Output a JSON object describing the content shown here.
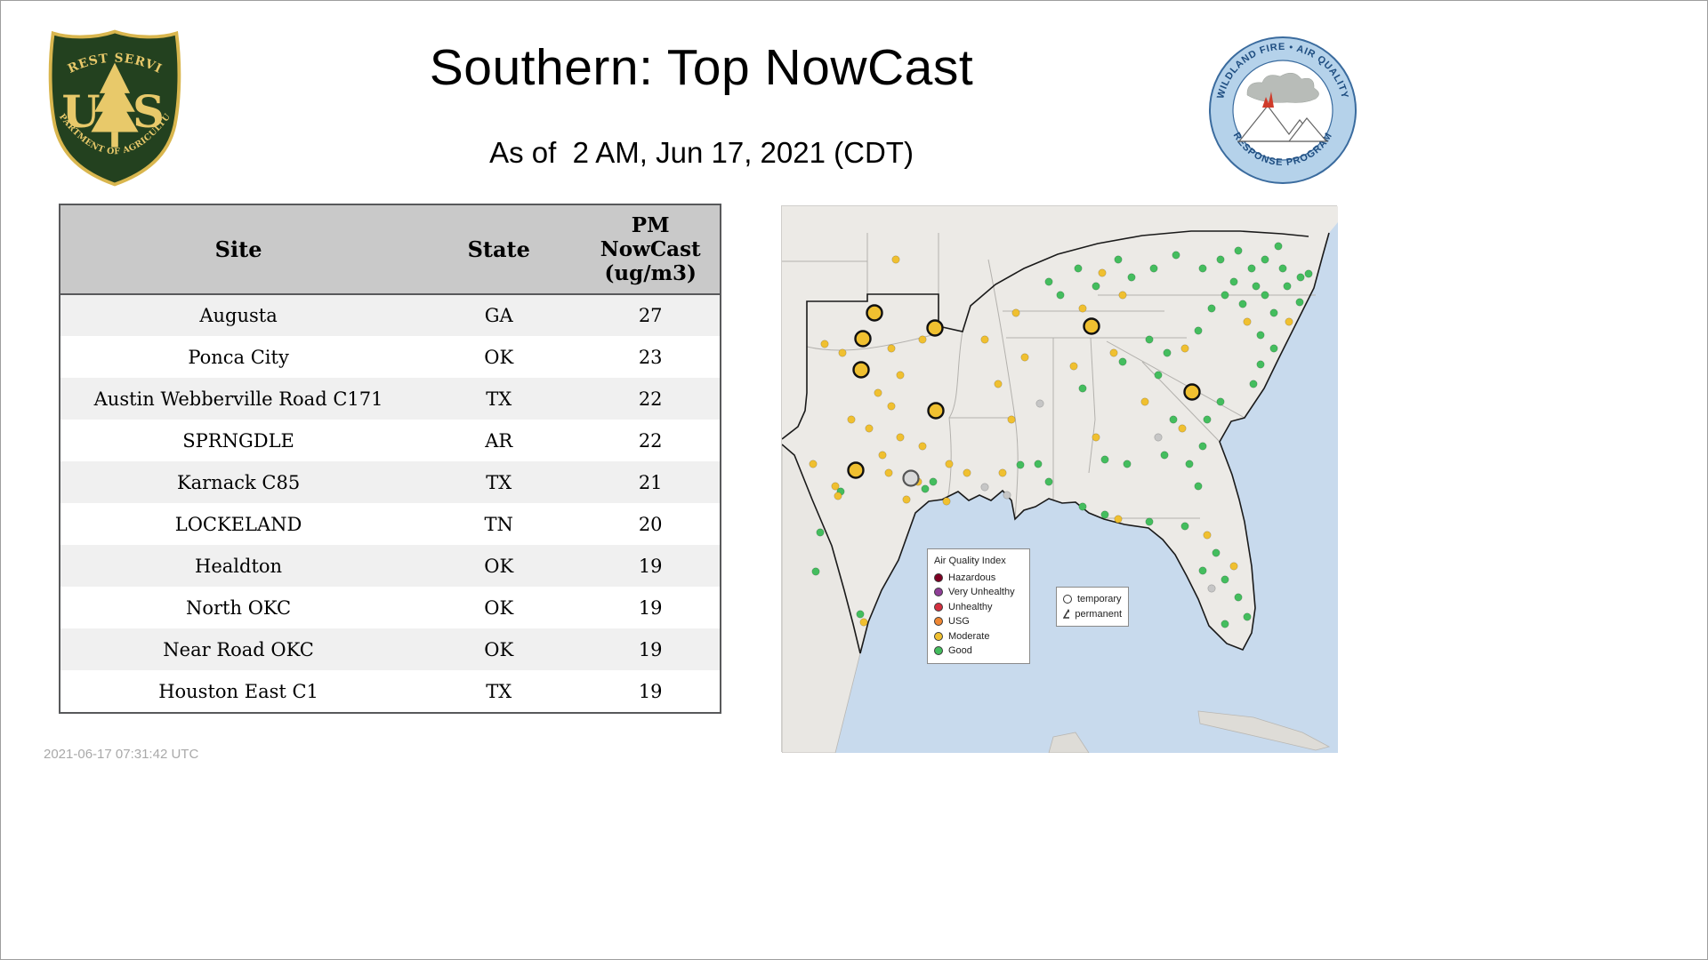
{
  "header": {
    "title": "Southern: Top NowCast",
    "as_of": "As of  2 AM, Jun 17, 2021 (CDT)"
  },
  "logos": {
    "usfs": {
      "arc_top": "FOREST SERVICE",
      "letter_u": "U",
      "letter_s": "S",
      "arc_bottom": "DEPARTMENT OF AGRICULTURE"
    },
    "wfaqrp": {
      "arc_top": "WILDLAND FIRE • AIR QUALITY",
      "arc_bottom": "RESPONSE PROGRAM"
    }
  },
  "table": {
    "site_header": "Site",
    "state_header": "State",
    "pm_header_lines": [
      "PM",
      "NowCast",
      "(ug/m3)"
    ],
    "rows": [
      {
        "site": "Augusta",
        "state": "GA",
        "value": "27"
      },
      {
        "site": "Ponca City",
        "state": "OK",
        "value": "23"
      },
      {
        "site": "Austin Webberville Road C171",
        "state": "TX",
        "value": "22"
      },
      {
        "site": "SPRNGDLE",
        "state": "AR",
        "value": "22"
      },
      {
        "site": "Karnack C85",
        "state": "TX",
        "value": "21"
      },
      {
        "site": "LOCKELAND",
        "state": "TN",
        "value": "20"
      },
      {
        "site": "Healdton",
        "state": "OK",
        "value": "19"
      },
      {
        "site": "North OKC",
        "state": "OK",
        "value": "19"
      },
      {
        "site": "Near Road OKC",
        "state": "OK",
        "value": "19"
      },
      {
        "site": "Houston East C1",
        "state": "TX",
        "value": "19"
      }
    ]
  },
  "map": {
    "legend": {
      "title": "Air Quality Index",
      "items": [
        {
          "label": "Hazardous",
          "color": "#7e0023"
        },
        {
          "label": "Very Unhealthy",
          "color": "#8f3f97"
        },
        {
          "label": "Unhealthy",
          "color": "#d god32f3f"
        },
        {
          "label": "USG",
          "color": "#ef8733"
        },
        {
          "label": "Moderate",
          "color": "#f0c030"
        },
        {
          "label": "Good",
          "color": "#44bd5e"
        }
      ]
    },
    "symbols": {
      "temporary": "temporary",
      "permanent": "permanent"
    },
    "colors": {
      "y": "#f0c030",
      "g": "#44bd5e",
      "n": "#c6c6c6",
      "big_gray": "#d9d9d9"
    },
    "markers": {
      "big_yellow": [
        [
          104,
          120
        ],
        [
          91,
          149
        ],
        [
          89,
          184
        ],
        [
          172,
          137
        ],
        [
          173,
          230
        ],
        [
          348,
          135
        ],
        [
          461,
          209
        ],
        [
          83,
          297
        ]
      ],
      "big_gray": [
        [
          145,
          306
        ]
      ],
      "dots": [
        [
          48,
          155,
          "y"
        ],
        [
          68,
          165,
          "y"
        ],
        [
          123,
          160,
          "y"
        ],
        [
          158,
          150,
          "y"
        ],
        [
          133,
          190,
          "y"
        ],
        [
          108,
          210,
          "y"
        ],
        [
          123,
          225,
          "y"
        ],
        [
          78,
          240,
          "y"
        ],
        [
          98,
          250,
          "y"
        ],
        [
          133,
          260,
          "y"
        ],
        [
          158,
          270,
          "y"
        ],
        [
          113,
          280,
          "y"
        ],
        [
          60,
          315,
          "y"
        ],
        [
          66,
          321,
          "g"
        ],
        [
          63,
          326,
          "y"
        ],
        [
          35,
          290,
          "y"
        ],
        [
          120,
          300,
          "y"
        ],
        [
          140,
          330,
          "y"
        ],
        [
          170,
          310,
          "g"
        ],
        [
          185,
          332,
          "y"
        ],
        [
          128,
          60,
          "y"
        ],
        [
          43,
          367,
          "g"
        ],
        [
          38,
          411,
          "g"
        ],
        [
          88,
          459,
          "g"
        ],
        [
          92,
          468,
          "y"
        ],
        [
          153,
          310,
          "y"
        ],
        [
          161,
          318,
          "g"
        ],
        [
          188,
          290,
          "y"
        ],
        [
          208,
          300,
          "y"
        ],
        [
          228,
          316,
          "n"
        ],
        [
          248,
          300,
          "y"
        ],
        [
          253,
          325,
          "n"
        ],
        [
          268,
          291,
          "g"
        ],
        [
          288,
          290,
          "g"
        ],
        [
          300,
          310,
          "g"
        ],
        [
          258,
          240,
          "y"
        ],
        [
          243,
          200,
          "y"
        ],
        [
          228,
          150,
          "y"
        ],
        [
          263,
          120,
          "y"
        ],
        [
          273,
          170,
          "y"
        ],
        [
          290,
          222,
          "n"
        ],
        [
          313,
          100,
          "g"
        ],
        [
          333,
          70,
          "g"
        ],
        [
          353,
          90,
          "g"
        ],
        [
          378,
          60,
          "g"
        ],
        [
          393,
          80,
          "g"
        ],
        [
          418,
          70,
          "g"
        ],
        [
          443,
          55,
          "g"
        ],
        [
          383,
          100,
          "y"
        ],
        [
          338,
          115,
          "y"
        ],
        [
          360,
          75,
          "y"
        ],
        [
          300,
          85,
          "g"
        ],
        [
          328,
          180,
          "y"
        ],
        [
          338,
          205,
          "g"
        ],
        [
          373,
          165,
          "y"
        ],
        [
          383,
          175,
          "g"
        ],
        [
          353,
          260,
          "y"
        ],
        [
          363,
          285,
          "g"
        ],
        [
          388,
          290,
          "g"
        ],
        [
          408,
          220,
          "y"
        ],
        [
          423,
          190,
          "g"
        ],
        [
          433,
          165,
          "g"
        ],
        [
          413,
          150,
          "g"
        ],
        [
          453,
          160,
          "y"
        ],
        [
          468,
          140,
          "g"
        ],
        [
          483,
          115,
          "g"
        ],
        [
          498,
          100,
          "g"
        ],
        [
          423,
          260,
          "n"
        ],
        [
          440,
          240,
          "g"
        ],
        [
          430,
          280,
          "g"
        ],
        [
          473,
          70,
          "g"
        ],
        [
          493,
          60,
          "g"
        ],
        [
          513,
          50,
          "g"
        ],
        [
          528,
          70,
          "g"
        ],
        [
          543,
          60,
          "g"
        ],
        [
          558,
          45,
          "g"
        ],
        [
          563,
          70,
          "g"
        ],
        [
          533,
          90,
          "g"
        ],
        [
          508,
          85,
          "g"
        ],
        [
          518,
          110,
          "g"
        ],
        [
          543,
          100,
          "g"
        ],
        [
          568,
          90,
          "g"
        ],
        [
          583,
          80,
          "g"
        ],
        [
          523,
          130,
          "y"
        ],
        [
          553,
          120,
          "g"
        ],
        [
          538,
          145,
          "g"
        ],
        [
          553,
          160,
          "g"
        ],
        [
          538,
          178,
          "g"
        ],
        [
          530,
          200,
          "g"
        ],
        [
          570,
          130,
          "y"
        ],
        [
          582,
          108,
          "g"
        ],
        [
          592,
          76,
          "g"
        ],
        [
          493,
          220,
          "g"
        ],
        [
          478,
          240,
          "g"
        ],
        [
          473,
          270,
          "g"
        ],
        [
          458,
          290,
          "g"
        ],
        [
          468,
          315,
          "g"
        ],
        [
          450,
          250,
          "y"
        ],
        [
          453,
          360,
          "g"
        ],
        [
          478,
          370,
          "y"
        ],
        [
          488,
          390,
          "g"
        ],
        [
          473,
          410,
          "g"
        ],
        [
          498,
          420,
          "g"
        ],
        [
          508,
          405,
          "y"
        ],
        [
          513,
          440,
          "g"
        ],
        [
          523,
          462,
          "g"
        ],
        [
          498,
          470,
          "g"
        ],
        [
          483,
          430,
          "n"
        ],
        [
          413,
          355,
          "g"
        ],
        [
          378,
          352,
          "y"
        ],
        [
          363,
          347,
          "g"
        ],
        [
          338,
          338,
          "g"
        ]
      ]
    }
  },
  "footer": {
    "generated": "2021-06-17 07:31:42 UTC"
  }
}
